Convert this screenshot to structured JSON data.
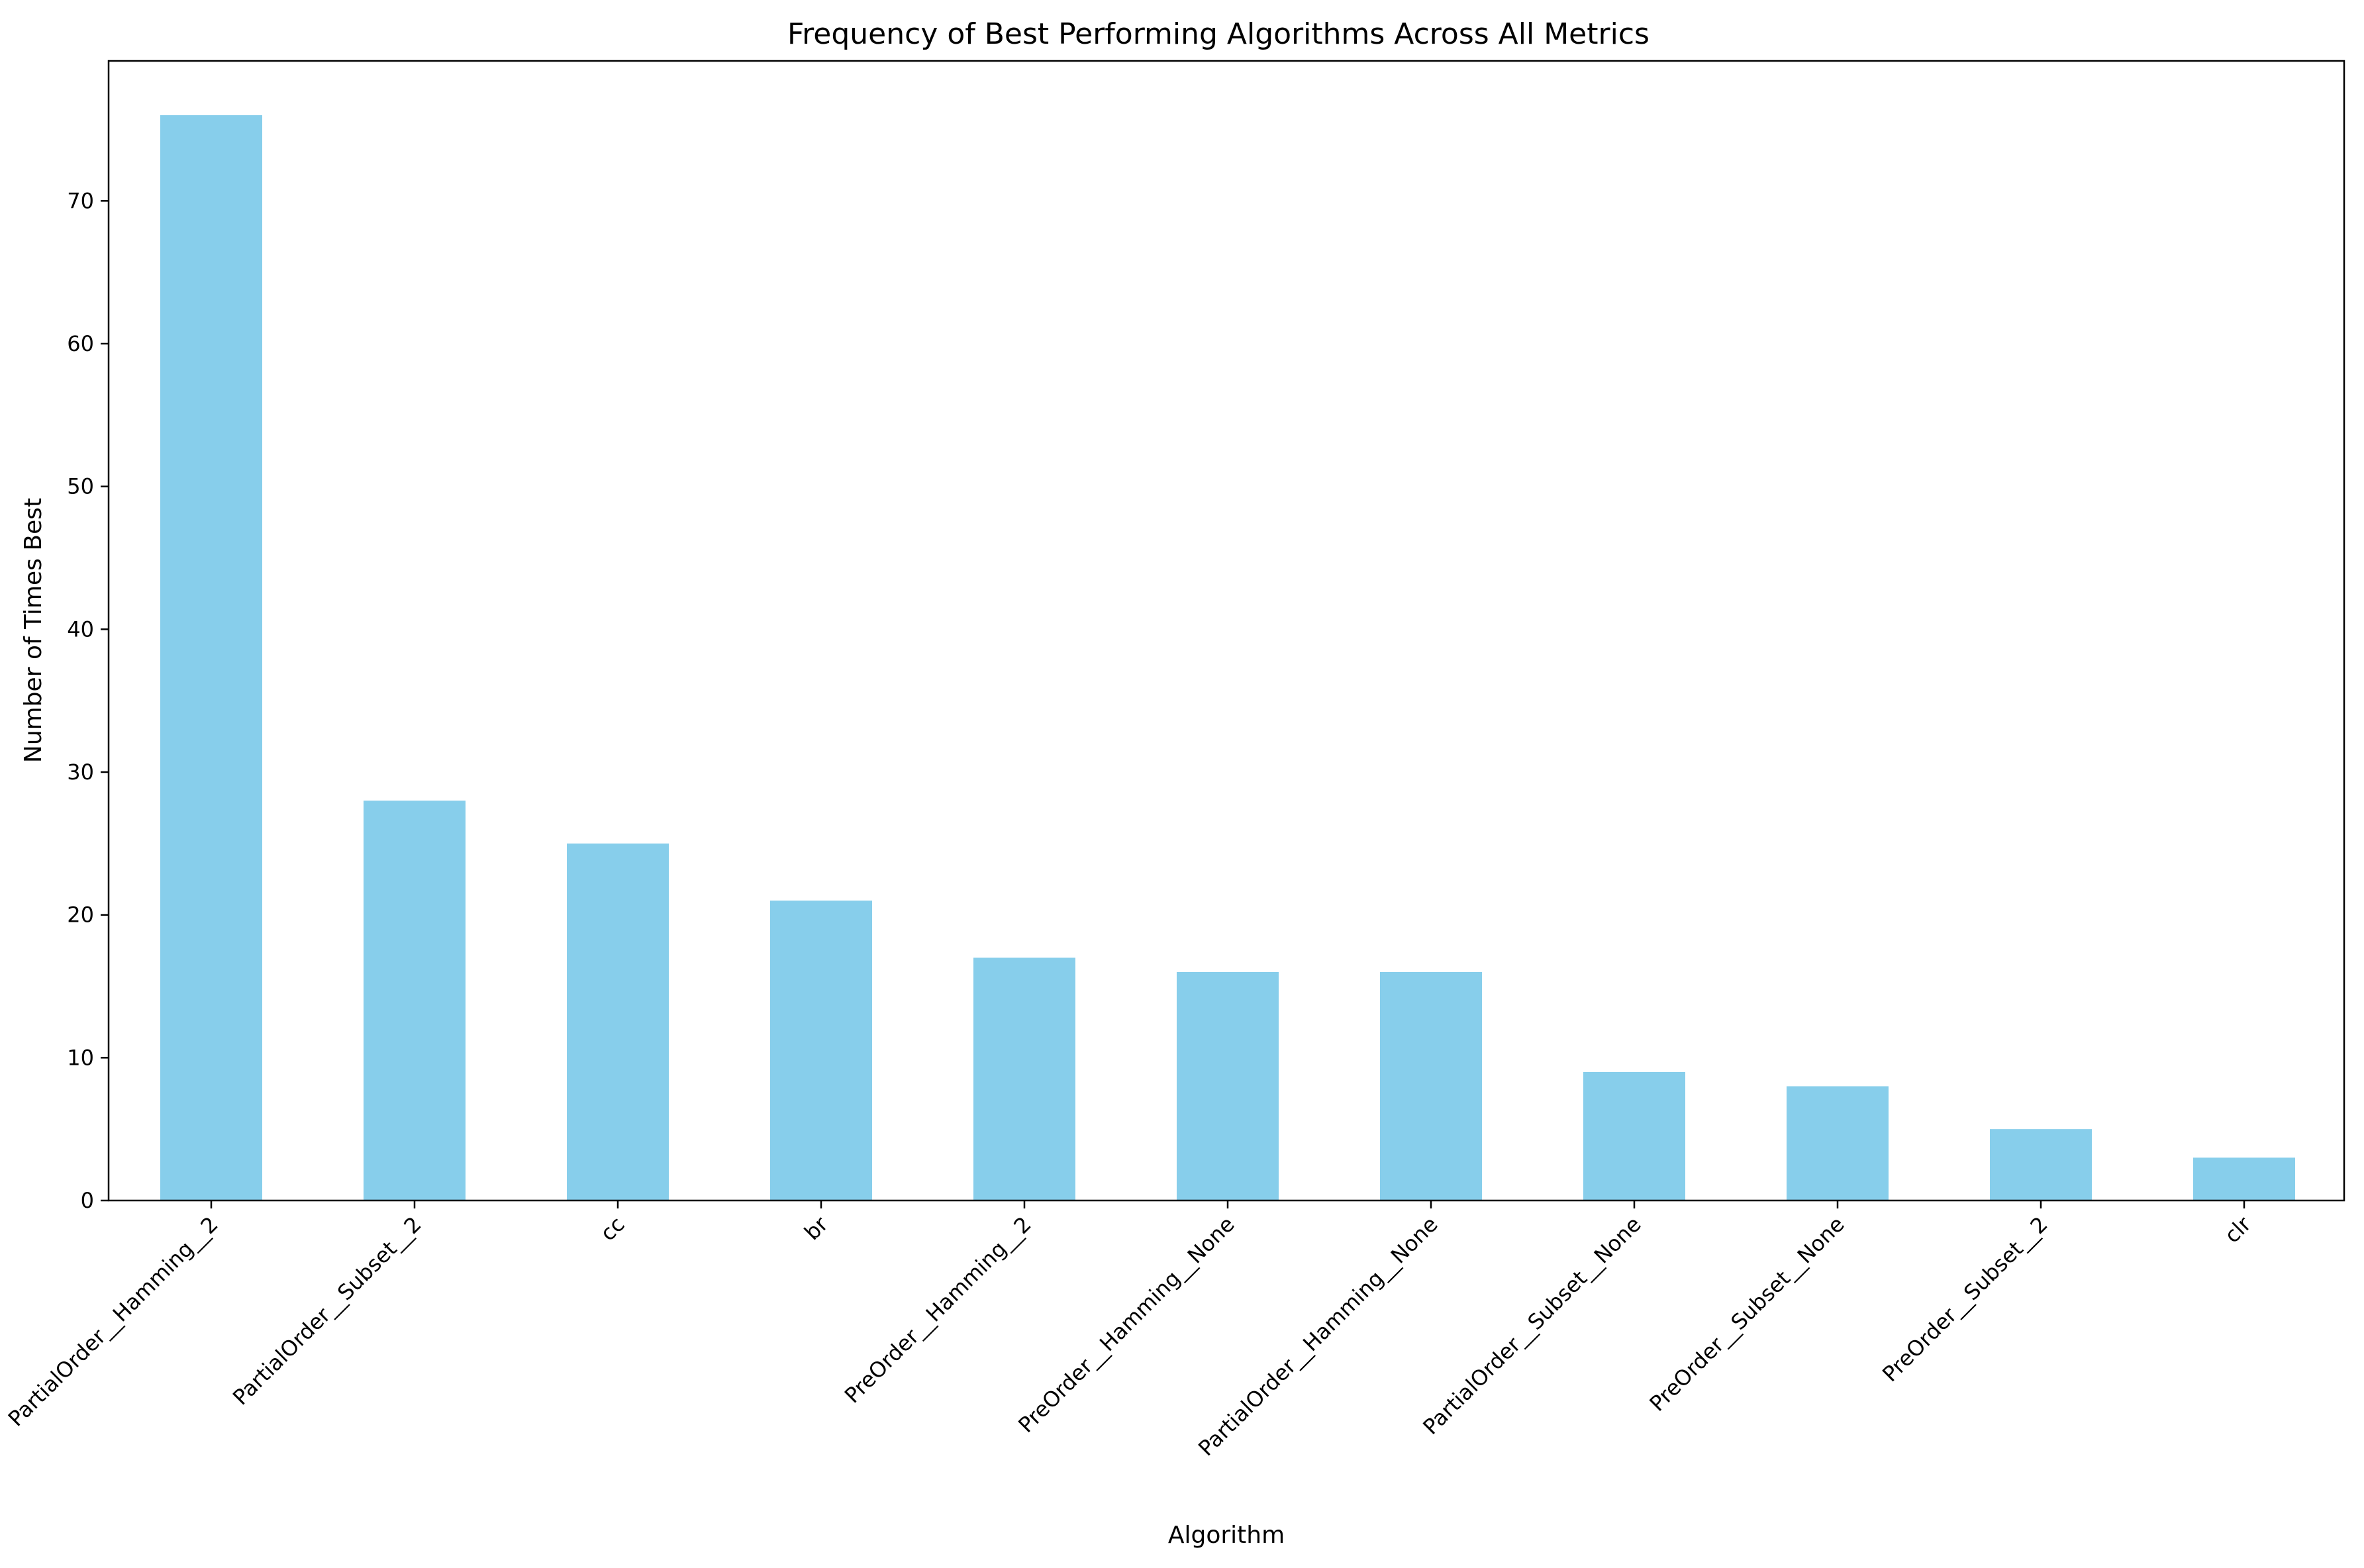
{
  "chart_data": {
    "type": "bar",
    "title": "Frequency of Best Performing Algorithms Across All Metrics",
    "xlabel": "Algorithm",
    "ylabel": "Number of Times Best",
    "categories": [
      "PartialOrder__Hamming__2",
      "PartialOrder__Subset__2",
      "cc",
      "br",
      "PreOrder__Hamming__2",
      "PreOrder__Hamming__None",
      "PartialOrder__Hamming__None",
      "PartialOrder__Subset__None",
      "PreOrder__Subset__None",
      "PreOrder__Subset__2",
      "clr"
    ],
    "values": [
      76,
      28,
      25,
      21,
      17,
      16,
      16,
      9,
      8,
      5,
      3
    ],
    "ylim": [
      0,
      79.8
    ],
    "yticks": [
      0,
      10,
      20,
      30,
      40,
      50,
      60,
      70
    ],
    "grid": false,
    "legend": false,
    "colors": {
      "bar": "#87ceeb",
      "axis": "#000000",
      "text": "#000000"
    }
  }
}
